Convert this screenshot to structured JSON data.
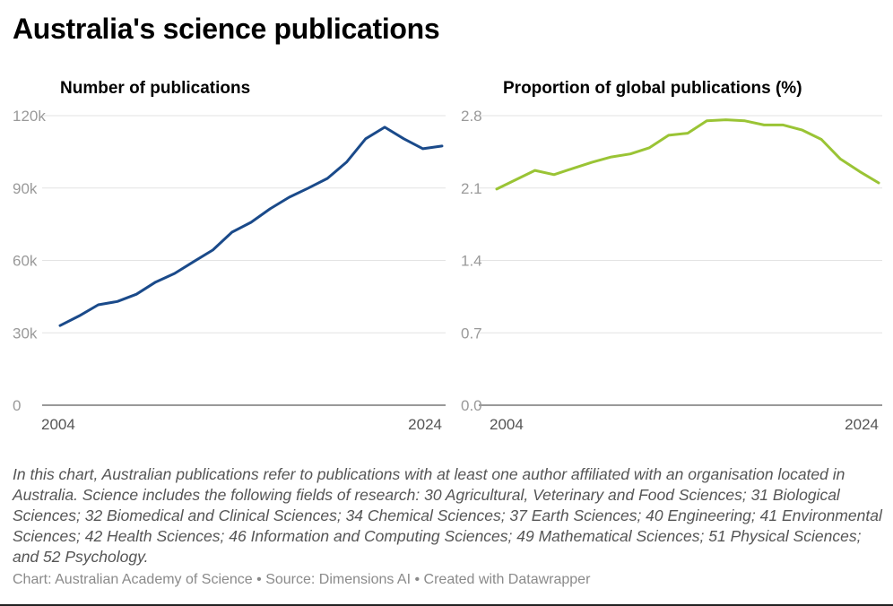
{
  "title": "Australia's science publications",
  "notes": "In this chart, Australian publications refer to publications with at least one author affiliated with an organisation located in Australia. Science includes the following fields of research: 30 Agricultural, Veterinary and Food Sciences; 31 Biological Sciences; 32 Biomedical and Clinical Sciences; 34 Chemical Sciences; 37 Earth Sciences; 40 Engineering; 41 Environmental Sciences; 42 Health Sciences; 46 Information and Computing Sciences; 49 Mathematical Sciences; 51 Physical Sciences; and 52 Psychology.",
  "credit": "Chart: Australian Academy of Science • Source: Dimensions AI • Created with Datawrapper",
  "chart_data": [
    {
      "type": "line",
      "title": "Number of publications",
      "color": "#1a4a8a",
      "x": [
        2004,
        2005,
        2006,
        2007,
        2008,
        2009,
        2010,
        2011,
        2012,
        2013,
        2014,
        2015,
        2016,
        2017,
        2018,
        2019,
        2020,
        2021,
        2022,
        2023,
        2024
      ],
      "values": [
        33000,
        37000,
        41600,
        43000,
        46000,
        51000,
        54600,
        59500,
        64300,
        71700,
        75800,
        81400,
        86200,
        90000,
        94000,
        100700,
        110400,
        115200,
        110400,
        106300,
        107400
      ],
      "ylim": [
        0,
        120000
      ],
      "yticks": [
        0,
        30000,
        60000,
        90000,
        120000
      ],
      "ytick_labels": [
        "0",
        "30k",
        "60k",
        "90k",
        "120k"
      ],
      "xtick_labels": [
        "2004",
        "2024"
      ],
      "grid": true
    },
    {
      "type": "line",
      "title": "Proportion of global publications (%)",
      "color": "#9ac435",
      "x": [
        2004,
        2005,
        2006,
        2007,
        2008,
        2009,
        2010,
        2011,
        2012,
        2013,
        2014,
        2015,
        2016,
        2017,
        2018,
        2019,
        2020,
        2021,
        2022,
        2023,
        2024
      ],
      "values": [
        2.09,
        2.18,
        2.27,
        2.23,
        2.29,
        2.35,
        2.4,
        2.43,
        2.49,
        2.61,
        2.63,
        2.75,
        2.76,
        2.75,
        2.71,
        2.71,
        2.66,
        2.57,
        2.38,
        2.26,
        2.15
      ],
      "ylim": [
        0,
        2.8
      ],
      "yticks": [
        0,
        0.7,
        1.4,
        2.1,
        2.8
      ],
      "ytick_labels": [
        "0.0",
        "0.7",
        "1.4",
        "2.1",
        "2.8"
      ],
      "xtick_labels": [
        "2004",
        "2024"
      ],
      "grid": true
    }
  ]
}
